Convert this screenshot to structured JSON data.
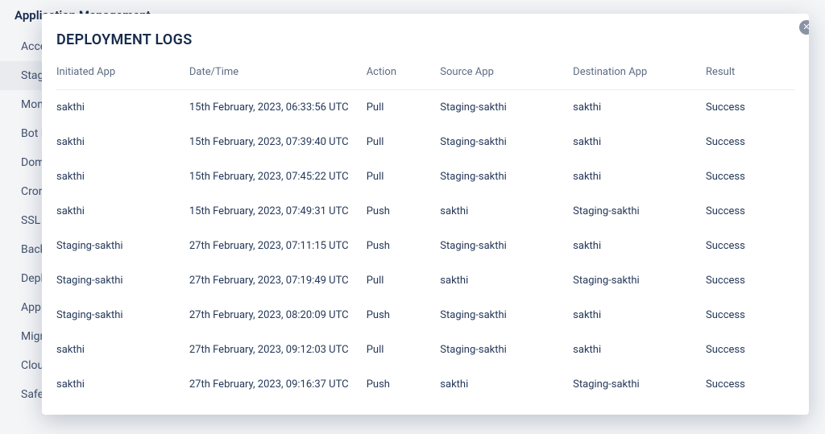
{
  "sidebar": {
    "title": "Application Management",
    "items": [
      {
        "label": "Access"
      },
      {
        "label": "Staging",
        "selected": true
      },
      {
        "label": "Monitoring"
      },
      {
        "label": "Bot Protection"
      },
      {
        "label": "Domain"
      },
      {
        "label": "Cron Jobs"
      },
      {
        "label": "SSL Certificate"
      },
      {
        "label": "Backup"
      },
      {
        "label": "Deployment"
      },
      {
        "label": "Application"
      },
      {
        "label": "Migration"
      },
      {
        "label": "Cloud"
      },
      {
        "label": "SafeUpdates"
      }
    ]
  },
  "modal": {
    "title": "DEPLOYMENT LOGS",
    "columns": [
      "Initiated App",
      "Date/Time",
      "Action",
      "Source App",
      "Destination App",
      "Result"
    ],
    "rows": [
      [
        "sakthi",
        "15th February, 2023, 06:33:56 UTC",
        "Pull",
        "Staging-sakthi",
        "sakthi",
        "Success"
      ],
      [
        "sakthi",
        "15th February, 2023, 07:39:40 UTC",
        "Pull",
        "Staging-sakthi",
        "sakthi",
        "Success"
      ],
      [
        "sakthi",
        "15th February, 2023, 07:45:22 UTC",
        "Pull",
        "Staging-sakthi",
        "sakthi",
        "Success"
      ],
      [
        "sakthi",
        "15th February, 2023, 07:49:31 UTC",
        "Push",
        "sakthi",
        "Staging-sakthi",
        "Success"
      ],
      [
        "Staging-sakthi",
        "27th February, 2023, 07:11:15 UTC",
        "Push",
        "Staging-sakthi",
        "sakthi",
        "Success"
      ],
      [
        "Staging-sakthi",
        "27th February, 2023, 07:19:49 UTC",
        "Pull",
        "sakthi",
        "Staging-sakthi",
        "Success"
      ],
      [
        "Staging-sakthi",
        "27th February, 2023, 08:20:09 UTC",
        "Push",
        "Staging-sakthi",
        "sakthi",
        "Success"
      ],
      [
        "sakthi",
        "27th February, 2023, 09:12:03 UTC",
        "Pull",
        "Staging-sakthi",
        "sakthi",
        "Success"
      ],
      [
        "sakthi",
        "27th February, 2023, 09:16:37 UTC",
        "Push",
        "sakthi",
        "Staging-sakthi",
        "Success"
      ]
    ]
  }
}
